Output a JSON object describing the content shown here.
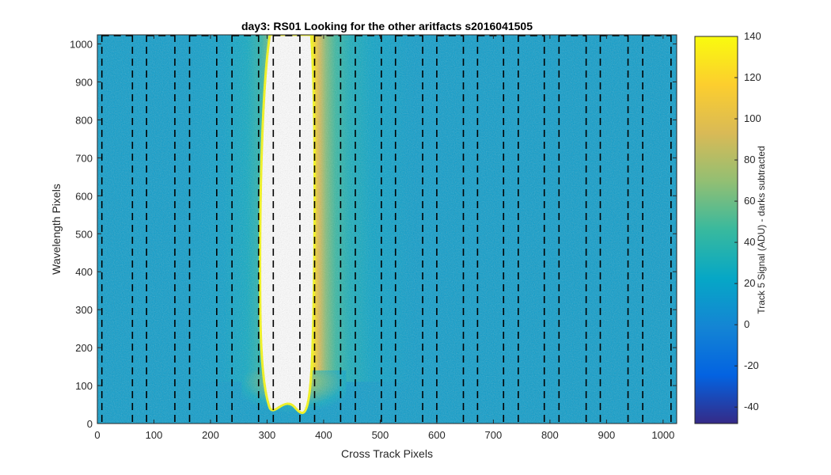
{
  "chart_data": {
    "type": "heatmap",
    "title": "day3: RS01  Looking for the other aritfacts  s2016041505",
    "xlabel": "Cross Track Pixels",
    "ylabel": "Wavelength Pixels",
    "xlim": [
      0,
      1024
    ],
    "ylim": [
      0,
      1024
    ],
    "xticks": [
      0,
      100,
      200,
      300,
      400,
      500,
      600,
      700,
      800,
      900,
      1000
    ],
    "yticks": [
      0,
      100,
      200,
      300,
      400,
      500,
      600,
      700,
      800,
      900,
      1000
    ],
    "colorbar": {
      "label": "Track 5 Signal (ADU) - darks subtracted",
      "clim": [
        -48,
        140
      ],
      "ticks": [
        140,
        120,
        100,
        80,
        60,
        40,
        20,
        0,
        -20,
        -40
      ],
      "colormap": "parula",
      "colormap_stops": [
        "#352a87",
        "#0363e1",
        "#1485d4",
        "#06a7c6",
        "#38b99e",
        "#92bf73",
        "#d9ba56",
        "#fcce2e",
        "#f9fb0e"
      ]
    },
    "background_value_adu": 15,
    "saturated_region": {
      "description": "central bright stray-light column, values above 140 ADU shown white",
      "x_range": [
        300,
        385
      ],
      "y_range": [
        30,
        1024
      ],
      "saturated_color": "#ffffff"
    },
    "dashed_boundary_lines": {
      "x_positions": [
        8,
        62,
        87,
        137,
        163,
        211,
        238,
        285,
        311,
        358,
        384,
        430,
        456,
        502,
        527,
        575,
        600,
        647,
        672,
        718,
        744,
        790,
        816,
        864,
        889,
        938,
        964,
        1014
      ],
      "line_color": "#000000",
      "style": "dashed"
    },
    "box_top_segments_x": [
      [
        8,
        62
      ],
      [
        87,
        137
      ],
      [
        163,
        211
      ],
      [
        238,
        285
      ],
      [
        311,
        358
      ],
      [
        384,
        430
      ],
      [
        456,
        502
      ],
      [
        527,
        575
      ],
      [
        600,
        647
      ],
      [
        672,
        718
      ],
      [
        744,
        790
      ],
      [
        816,
        864
      ],
      [
        889,
        938
      ],
      [
        964,
        1014
      ]
    ]
  }
}
